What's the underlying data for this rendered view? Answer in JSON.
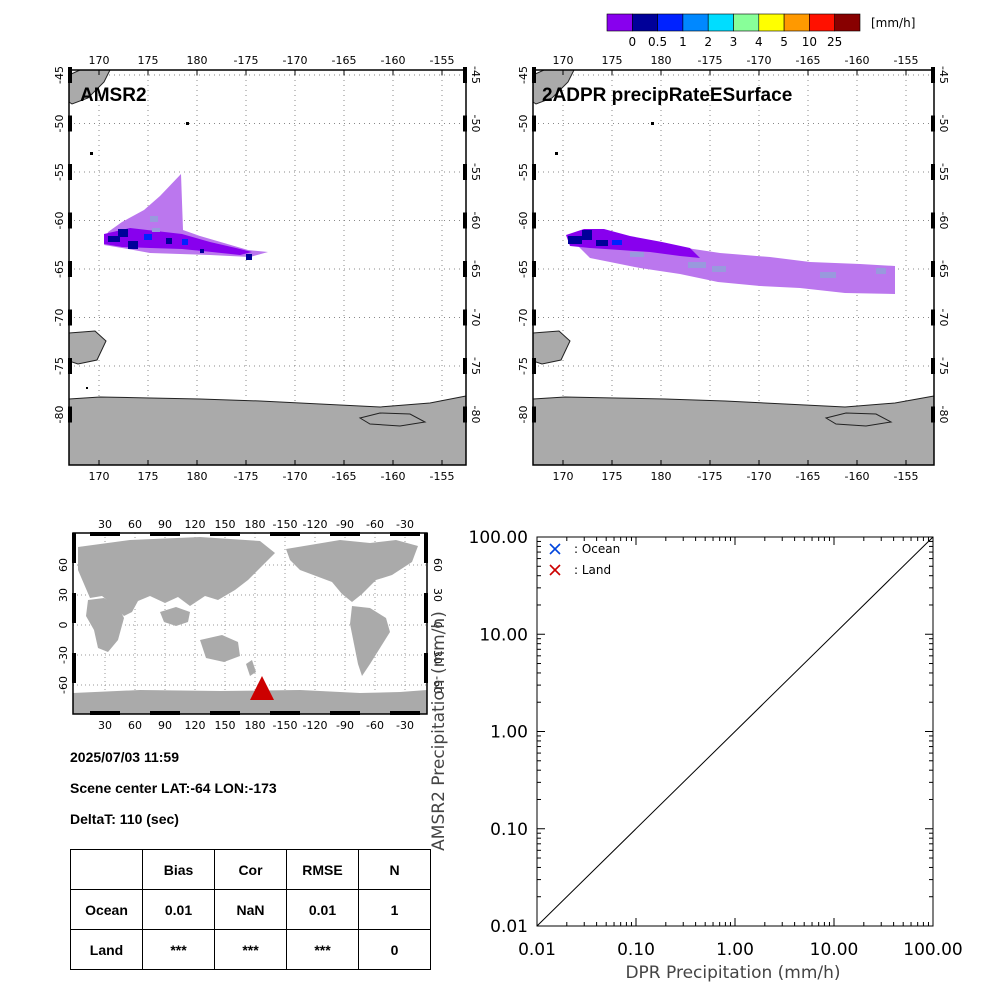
{
  "colorbar": {
    "unit": "[mm/h]",
    "colors": [
      "#8800ee",
      "#000099",
      "#0022ff",
      "#0088ff",
      "#00ddff",
      "#88ff99",
      "#ffff00",
      "#ff9900",
      "#ff1100",
      "#880000"
    ],
    "labels": [
      "0",
      "0.5",
      "1",
      "2",
      "3",
      "4",
      "5",
      "10",
      "25"
    ]
  },
  "maps": {
    "lon_labels": [
      "170",
      "175",
      "180",
      "-175",
      "-170",
      "-165",
      "-160",
      "-155"
    ],
    "lat_labels": [
      "-45",
      "-50",
      "-55",
      "-60",
      "-65",
      "-70",
      "-75",
      "-80"
    ],
    "left_title": "AMSR2",
    "right_title": "2ADPR precipRateESurface",
    "land_color": "#aaaaaa",
    "light_precip_color": "#bb77ee"
  },
  "world_map": {
    "lon_labels": [
      "30",
      "60",
      "90",
      "120",
      "150",
      "180",
      "-150",
      "-120",
      "-90",
      "-60",
      "-30"
    ],
    "lat_labels": [
      "60",
      "30",
      "0",
      "-30",
      "-60"
    ],
    "marker_color": "#cc0000"
  },
  "info": {
    "datetime": "2025/07/03 11:59",
    "scene_center": "Scene center LAT:-64   LON:-173",
    "delta_t": "DeltaT:  110 (sec)"
  },
  "stats_table": {
    "headers": [
      "",
      "Bias",
      "Cor",
      "RMSE",
      "N"
    ],
    "rows": [
      [
        "Ocean",
        "0.01",
        "NaN",
        "0.01",
        "1"
      ],
      [
        "Land",
        "***",
        "***",
        "***",
        "0"
      ]
    ]
  },
  "chart_data": {
    "type": "scatter",
    "xlabel": "DPR Precipitation (mm/h)",
    "ylabel": "AMSR2 Precipitation (mm/h)",
    "xscale": "log",
    "yscale": "log",
    "xlim": [
      0.01,
      100
    ],
    "ylim": [
      0.01,
      100
    ],
    "x_ticks": [
      "0.01",
      "0.10",
      "1.00",
      "10.00",
      "100.00"
    ],
    "y_ticks": [
      "0.01",
      "0.10",
      "1.00",
      "10.00",
      "100.00"
    ],
    "reference_line": "1:1",
    "legend_position": "top-left",
    "series": [
      {
        "name": ": Ocean",
        "marker": "x",
        "color": "#0044dd",
        "points": []
      },
      {
        "name": ": Land",
        "marker": "x",
        "color": "#cc0000",
        "points": []
      }
    ]
  }
}
